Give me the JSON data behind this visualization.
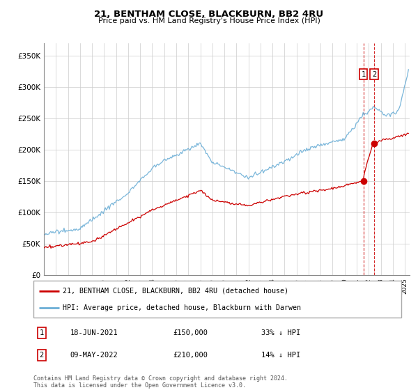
{
  "title": "21, BENTHAM CLOSE, BLACKBURN, BB2 4RU",
  "subtitle": "Price paid vs. HM Land Registry's House Price Index (HPI)",
  "legend_house": "21, BENTHAM CLOSE, BLACKBURN, BB2 4RU (detached house)",
  "legend_hpi": "HPI: Average price, detached house, Blackburn with Darwen",
  "footer": "Contains HM Land Registry data © Crown copyright and database right 2024.\nThis data is licensed under the Open Government Licence v3.0.",
  "transaction1_label": "1",
  "transaction1_date": "18-JUN-2021",
  "transaction1_price": "£150,000",
  "transaction1_hpi": "33% ↓ HPI",
  "transaction2_label": "2",
  "transaction2_date": "09-MAY-2022",
  "transaction2_price": "£210,000",
  "transaction2_hpi": "14% ↓ HPI",
  "hpi_color": "#6baed6",
  "house_color": "#cc0000",
  "vline_color": "#cc0000",
  "ylim": [
    0,
    370000
  ],
  "yticks": [
    0,
    50000,
    100000,
    150000,
    200000,
    250000,
    300000,
    350000
  ],
  "ytick_labels": [
    "£0",
    "£50K",
    "£100K",
    "£150K",
    "£200K",
    "£250K",
    "£300K",
    "£350K"
  ]
}
